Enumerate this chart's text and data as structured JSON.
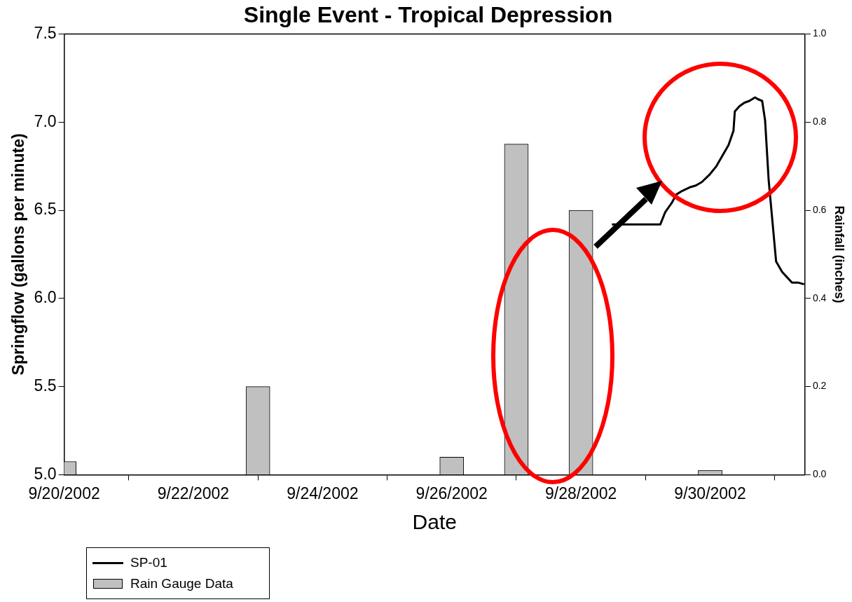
{
  "chart_data": {
    "type": "bar",
    "title": "Single Event - Tropical Depression",
    "xlabel": "Date",
    "ylabel": "Springflow (gallons per minute)",
    "y2label": "Rainfall (inches)",
    "xlim": [
      "2002-09-20",
      "2002-10-01T11:15"
    ],
    "xticks": [
      {
        "value": "2002-09-20",
        "label": "9/20/2002"
      },
      {
        "value": "2002-09-22",
        "label": "9/22/2002"
      },
      {
        "value": "2002-09-24",
        "label": "9/24/2002"
      },
      {
        "value": "2002-09-26",
        "label": "9/26/2002"
      },
      {
        "value": "2002-09-28",
        "label": "9/28/2002"
      },
      {
        "value": "2002-09-30",
        "label": "9/30/2002"
      }
    ],
    "ylim": [
      5,
      7.5
    ],
    "yticks": [
      {
        "value": 5,
        "label": "5.0"
      },
      5.5,
      {
        "value": 6,
        "label": "6.0"
      },
      6.5,
      {
        "value": 7,
        "label": "7.0"
      },
      7.5
    ],
    "y2lim": [
      0,
      1
    ],
    "y2ticks": [
      {
        "value": 0,
        "label": "0.0"
      },
      0.2,
      0.4,
      0.6,
      0.8,
      {
        "value": 1,
        "label": "1.0"
      }
    ],
    "legend": "bottom left",
    "grid": false,
    "series": [
      {
        "name": "SP-01",
        "type": "line",
        "color": "#000000",
        "marker": "none",
        "line_style": "solid",
        "x": [
          "2002-09-28T11:30",
          "2002-09-29T05:30",
          "2002-09-29T07:20",
          "2002-09-29T09:40",
          "2002-09-29T11:30",
          "2002-09-29T13:40",
          "2002-09-29T16:25",
          "2002-09-29T18:40",
          "2002-09-29T20:55",
          "2002-09-29T23:40",
          "2002-09-30T02:20",
          "2002-09-30T04:35",
          "2002-09-30T06:50",
          "2002-09-30T08:40",
          "2002-09-30T09:10",
          "2002-09-30T10:55",
          "2002-09-30T12:45",
          "2002-09-30T14:35",
          "2002-09-30T16:40",
          "2002-09-30T17:45",
          "2002-09-30T19:20",
          "2002-09-30T20:25",
          "2002-09-30T21:45",
          "2002-10-01T00:30",
          "2002-10-01T02:45",
          "2002-10-01T04:35",
          "2002-10-01T06:25",
          "2002-10-01T08:35",
          "2002-10-01T10:55"
        ],
        "values": [
          6.42,
          6.42,
          6.49,
          6.54,
          6.59,
          6.61,
          6.63,
          6.64,
          6.66,
          6.7,
          6.75,
          6.81,
          6.87,
          6.95,
          7.06,
          7.09,
          7.11,
          7.12,
          7.14,
          7.13,
          7.12,
          7.01,
          6.67,
          6.21,
          6.15,
          6.12,
          6.09,
          6.09,
          6.08
        ]
      },
      {
        "name": "Rain Gauge Data",
        "axis": "y2",
        "color": "#c0c0c0",
        "x": [
          "2002-09-20",
          "2002-09-23",
          "2002-09-26",
          "2002-09-27",
          "2002-09-28",
          "2002-09-30"
        ],
        "values": [
          0.03,
          0.2,
          0.04,
          0.75,
          0.6,
          0.01
        ]
      }
    ]
  }
}
